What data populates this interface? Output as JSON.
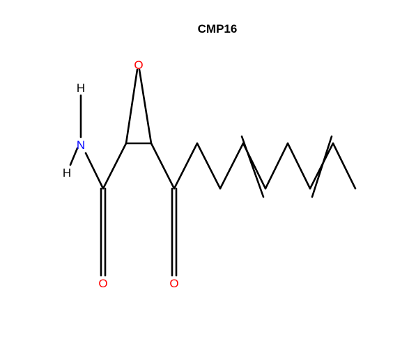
{
  "title": "CMP16",
  "colors": {
    "background": "#ffffff",
    "bond": "#000000",
    "oxygen": "#ff0000",
    "nitrogen": "#0000ff",
    "hydrogen": "#000000",
    "title": "#000000"
  },
  "molecule": {
    "atoms": {
      "o_epoxide": "O",
      "h_top": "H",
      "n_amide": "N",
      "h_bottom": "H",
      "o_amide": "O",
      "o_ketone": "O"
    }
  }
}
